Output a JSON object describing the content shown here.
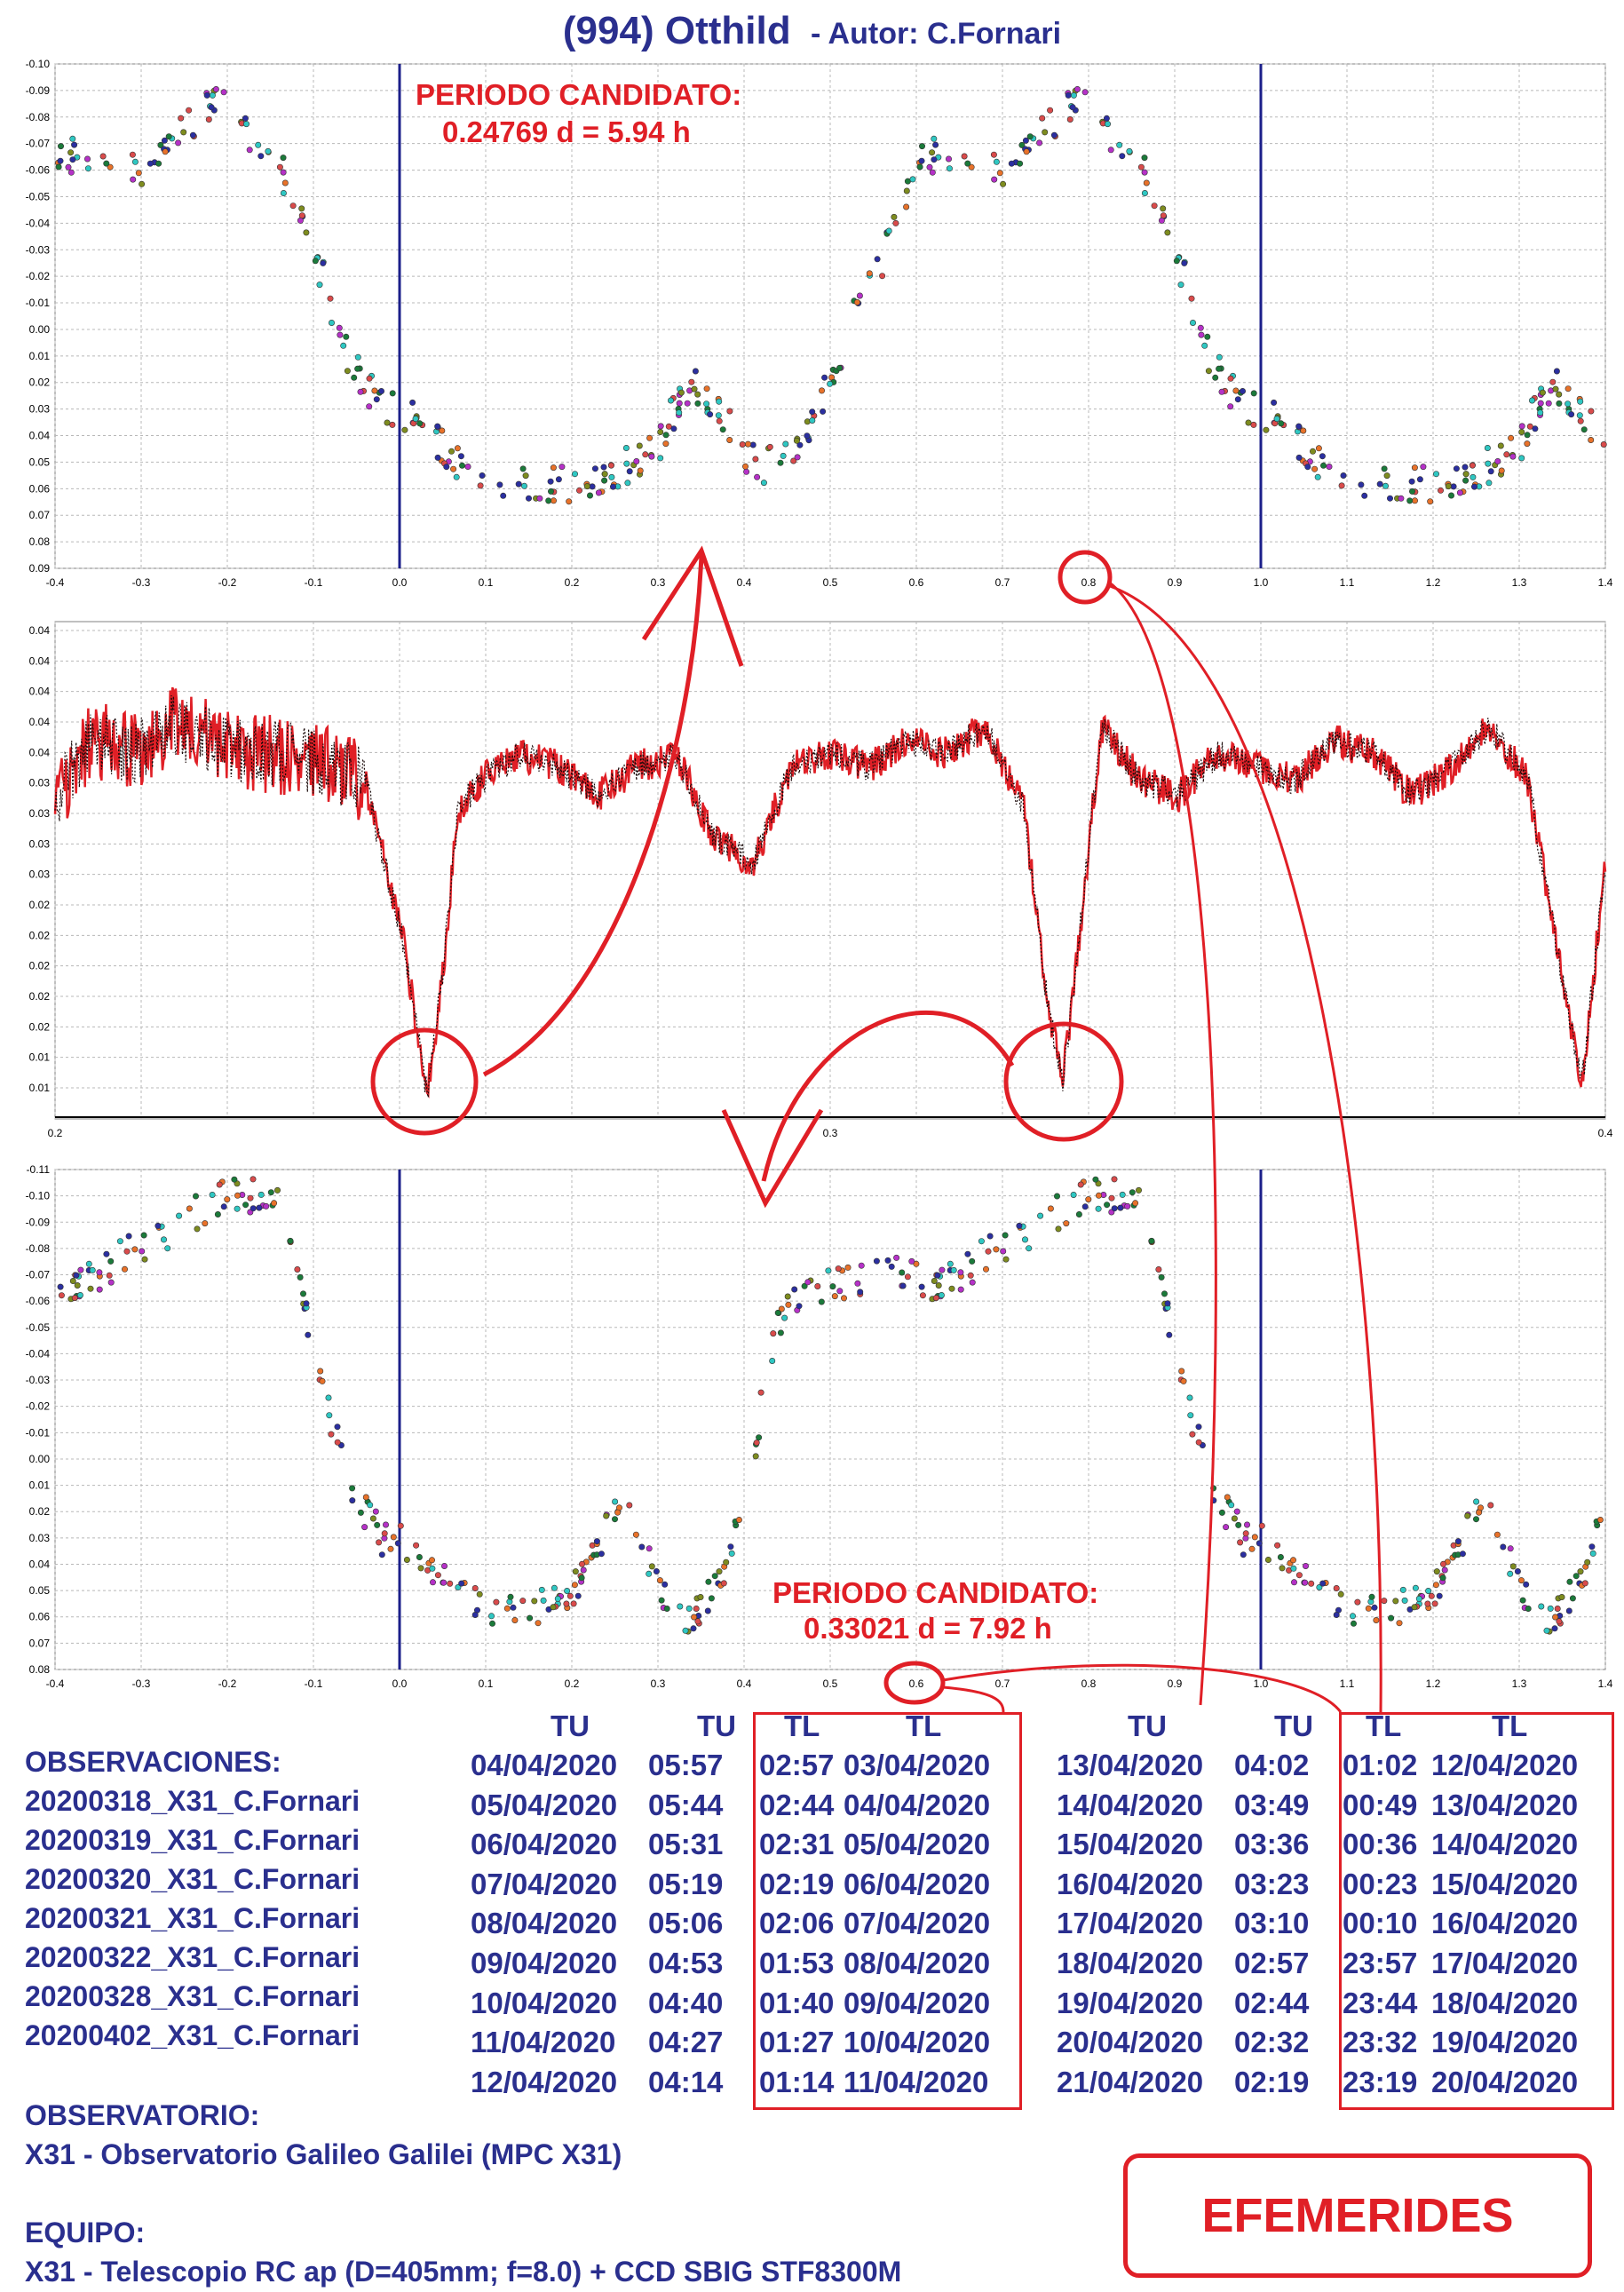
{
  "header": {
    "title": "(994) Otthild",
    "author": "- Autor: C.Fornari"
  },
  "colors": {
    "blue": "#2a2f8e",
    "red": "#e01f26",
    "navy_line": "#1b1f8a"
  },
  "panel1": {
    "annotation_line1": "PERIODO CANDIDATO:",
    "annotation_line2": "0.24769 d = 5.94 h",
    "x_ticks": [
      "-0.4",
      "-0.3",
      "-0.2",
      "-0.1",
      "0.0",
      "0.1",
      "0.2",
      "0.3",
      "0.4",
      "0.5",
      "0.6",
      "0.7",
      "0.8",
      "0.9",
      "1.0",
      "1.1",
      "1.2",
      "1.3",
      "1.4"
    ],
    "y_ticks": [
      "-0.10",
      "-0.09",
      "-0.08",
      "-0.07",
      "-0.06",
      "-0.05",
      "-0.04",
      "-0.03",
      "-0.02",
      "-0.01",
      "0.00",
      "0.01",
      "0.02",
      "0.03",
      "0.04",
      "0.05",
      "0.06",
      "0.07",
      "0.08",
      "0.09"
    ]
  },
  "panel2": {
    "x_ticks": [
      "0.2",
      "0.3",
      "0.4"
    ],
    "y_ticks": [
      "0.04",
      "0.04",
      "0.04",
      "0.04",
      "0.04",
      "0.03",
      "0.03",
      "0.03",
      "0.03",
      "0.02",
      "0.02",
      "0.02",
      "0.02",
      "0.02",
      "0.01",
      "0.01"
    ]
  },
  "panel3": {
    "annotation_line1": "PERIODO CANDIDATO:",
    "annotation_line2": "0.33021 d = 7.92 h",
    "x_ticks": [
      "-0.4",
      "-0.3",
      "-0.2",
      "-0.1",
      "0.0",
      "0.1",
      "0.2",
      "0.3",
      "0.4",
      "0.5",
      "0.6",
      "0.7",
      "0.8",
      "0.9",
      "1.0",
      "1.1",
      "1.2",
      "1.3",
      "1.4"
    ],
    "y_ticks": [
      "-0.11",
      "-0.10",
      "-0.09",
      "-0.08",
      "-0.07",
      "-0.06",
      "-0.05",
      "-0.04",
      "-0.03",
      "-0.02",
      "-0.01",
      "0.00",
      "0.01",
      "0.02",
      "0.03",
      "0.04",
      "0.05",
      "0.06",
      "0.07",
      "0.08"
    ]
  },
  "chart_data": [
    {
      "type": "scatter",
      "xlim": [
        -0.4,
        1.4
      ],
      "ylim": [
        -0.1,
        0.09
      ],
      "y_inverted": true,
      "grid": true,
      "period_label": "0.24769 d = 5.94 h",
      "phase_markers": [
        0.0,
        1.0
      ],
      "curve": {
        "x": [
          -0.38,
          -0.35,
          -0.3,
          -0.25,
          -0.22,
          -0.2,
          -0.17,
          -0.14,
          -0.12,
          -0.1,
          -0.08,
          -0.06,
          -0.04,
          -0.02,
          0.0,
          0.02,
          0.05,
          0.08,
          0.12,
          0.16,
          0.2,
          0.24,
          0.26,
          0.28,
          0.3,
          0.32,
          0.34,
          0.36,
          0.38,
          0.4,
          0.42,
          0.44,
          0.46,
          0.48,
          0.5,
          0.52,
          0.55,
          0.58,
          0.6
        ],
        "y": [
          -0.065,
          -0.068,
          -0.06,
          -0.075,
          -0.085,
          -0.088,
          -0.07,
          -0.062,
          -0.048,
          -0.03,
          -0.01,
          0.01,
          0.02,
          0.03,
          0.03,
          0.035,
          0.045,
          0.052,
          0.058,
          0.06,
          0.058,
          0.055,
          0.052,
          0.05,
          0.045,
          0.03,
          0.02,
          0.025,
          0.035,
          0.048,
          0.052,
          0.05,
          0.045,
          0.035,
          0.02,
          0.0,
          -0.02,
          -0.04,
          -0.06
        ]
      },
      "series": [
        {
          "name": "20200318_X31_C.Fornari"
        },
        {
          "name": "20200319_X31_C.Fornari"
        },
        {
          "name": "20200320_X31_C.Fornari"
        },
        {
          "name": "20200321_X31_C.Fornari"
        },
        {
          "name": "20200322_X31_C.Fornari"
        },
        {
          "name": "20200328_X31_C.Fornari"
        },
        {
          "name": "20200402_X31_C.Fornari"
        }
      ]
    },
    {
      "type": "line",
      "xlim": [
        0.2,
        0.4
      ],
      "ylim": [
        0.01,
        0.045
      ],
      "grid": true,
      "x": [
        0.2,
        0.205,
        0.21,
        0.215,
        0.22,
        0.225,
        0.23,
        0.235,
        0.24,
        0.245,
        0.248,
        0.25,
        0.252,
        0.255,
        0.26,
        0.265,
        0.27,
        0.275,
        0.28,
        0.285,
        0.29,
        0.295,
        0.3,
        0.305,
        0.31,
        0.315,
        0.32,
        0.325,
        0.328,
        0.33,
        0.332,
        0.335,
        0.34,
        0.345,
        0.35,
        0.355,
        0.36,
        0.365,
        0.37,
        0.375,
        0.38,
        0.385,
        0.39,
        0.395,
        0.397,
        0.4
      ],
      "y": [
        0.033,
        0.037,
        0.036,
        0.038,
        0.037,
        0.036,
        0.036,
        0.035,
        0.034,
        0.022,
        0.011,
        0.02,
        0.032,
        0.034,
        0.036,
        0.035,
        0.033,
        0.035,
        0.036,
        0.03,
        0.028,
        0.035,
        0.036,
        0.035,
        0.037,
        0.036,
        0.038,
        0.032,
        0.018,
        0.012,
        0.022,
        0.038,
        0.034,
        0.033,
        0.036,
        0.035,
        0.034,
        0.037,
        0.036,
        0.033,
        0.035,
        0.038,
        0.034,
        0.018,
        0.012,
        0.028
      ]
    },
    {
      "type": "scatter",
      "xlim": [
        -0.4,
        1.4
      ],
      "ylim": [
        -0.11,
        0.08
      ],
      "y_inverted": true,
      "grid": true,
      "period_label": "0.33021 d = 7.92 h",
      "phase_markers": [
        0.0,
        1.0
      ],
      "curve": {
        "x": [
          -0.38,
          -0.2,
          -0.17,
          -0.14,
          -0.12,
          -0.1,
          -0.08,
          -0.06,
          -0.04,
          -0.02,
          0.0,
          0.02,
          0.05,
          0.08,
          0.12,
          0.16,
          0.2,
          0.22,
          0.24,
          0.26,
          0.28,
          0.3,
          0.32,
          0.34,
          0.36,
          0.38,
          0.4,
          0.42,
          0.44,
          0.46,
          0.5,
          0.55,
          0.58,
          0.6
        ],
        "y": [
          -0.065,
          -0.1,
          -0.1,
          -0.095,
          -0.07,
          -0.04,
          -0.015,
          0.005,
          0.02,
          0.03,
          0.03,
          0.035,
          0.045,
          0.055,
          0.058,
          0.056,
          0.05,
          0.04,
          0.025,
          0.02,
          0.03,
          0.045,
          0.06,
          0.06,
          0.05,
          0.04,
          0.02,
          -0.02,
          -0.05,
          -0.06,
          -0.065,
          -0.07,
          -0.07,
          -0.07
        ]
      },
      "series": [
        {
          "name": "20200318_X31_C.Fornari"
        },
        {
          "name": "20200319_X31_C.Fornari"
        },
        {
          "name": "20200320_X31_C.Fornari"
        },
        {
          "name": "20200321_X31_C.Fornari"
        },
        {
          "name": "20200322_X31_C.Fornari"
        },
        {
          "name": "20200328_X31_C.Fornari"
        },
        {
          "name": "20200402_X31_C.Fornari"
        }
      ]
    }
  ],
  "info": {
    "obs_title": "OBSERVACIONES:",
    "observations": [
      "20200318_X31_C.Fornari",
      "20200319_X31_C.Fornari",
      "20200320_X31_C.Fornari",
      "20200321_X31_C.Fornari",
      "20200322_X31_C.Fornari",
      "20200328_X31_C.Fornari",
      "20200402_X31_C.Fornari"
    ],
    "observatory_title": "OBSERVATORIO:",
    "observatory": "X31 - Observatorio Galileo Galilei (MPC X31)",
    "equipment_title": "EQUIPO:",
    "equipment": "X31 - Telescopio RC ap (D=405mm; f=8.0) + CCD SBIG STF8300M"
  },
  "ephemerides": {
    "headers": [
      "TU",
      "TU",
      "TL",
      "TL"
    ],
    "left": [
      [
        "04/04/2020",
        "05:57",
        "02:57",
        "03/04/2020"
      ],
      [
        "05/04/2020",
        "05:44",
        "02:44",
        "04/04/2020"
      ],
      [
        "06/04/2020",
        "05:31",
        "02:31",
        "05/04/2020"
      ],
      [
        "07/04/2020",
        "05:19",
        "02:19",
        "06/04/2020"
      ],
      [
        "08/04/2020",
        "05:06",
        "02:06",
        "07/04/2020"
      ],
      [
        "09/04/2020",
        "04:53",
        "01:53",
        "08/04/2020"
      ],
      [
        "10/04/2020",
        "04:40",
        "01:40",
        "09/04/2020"
      ],
      [
        "11/04/2020",
        "04:27",
        "01:27",
        "10/04/2020"
      ],
      [
        "12/04/2020",
        "04:14",
        "01:14",
        "11/04/2020"
      ]
    ],
    "right": [
      [
        "13/04/2020",
        "04:02",
        "01:02",
        "12/04/2020"
      ],
      [
        "14/04/2020",
        "03:49",
        "00:49",
        "13/04/2020"
      ],
      [
        "15/04/2020",
        "03:36",
        "00:36",
        "14/04/2020"
      ],
      [
        "16/04/2020",
        "03:23",
        "00:23",
        "15/04/2020"
      ],
      [
        "17/04/2020",
        "03:10",
        "00:10",
        "16/04/2020"
      ],
      [
        "18/04/2020",
        "02:57",
        "23:57",
        "17/04/2020"
      ],
      [
        "19/04/2020",
        "02:44",
        "23:44",
        "18/04/2020"
      ],
      [
        "20/04/2020",
        "02:32",
        "23:32",
        "19/04/2020"
      ],
      [
        "21/04/2020",
        "02:19",
        "23:19",
        "20/04/2020"
      ]
    ]
  },
  "button": {
    "label": "EFEMERIDES"
  }
}
